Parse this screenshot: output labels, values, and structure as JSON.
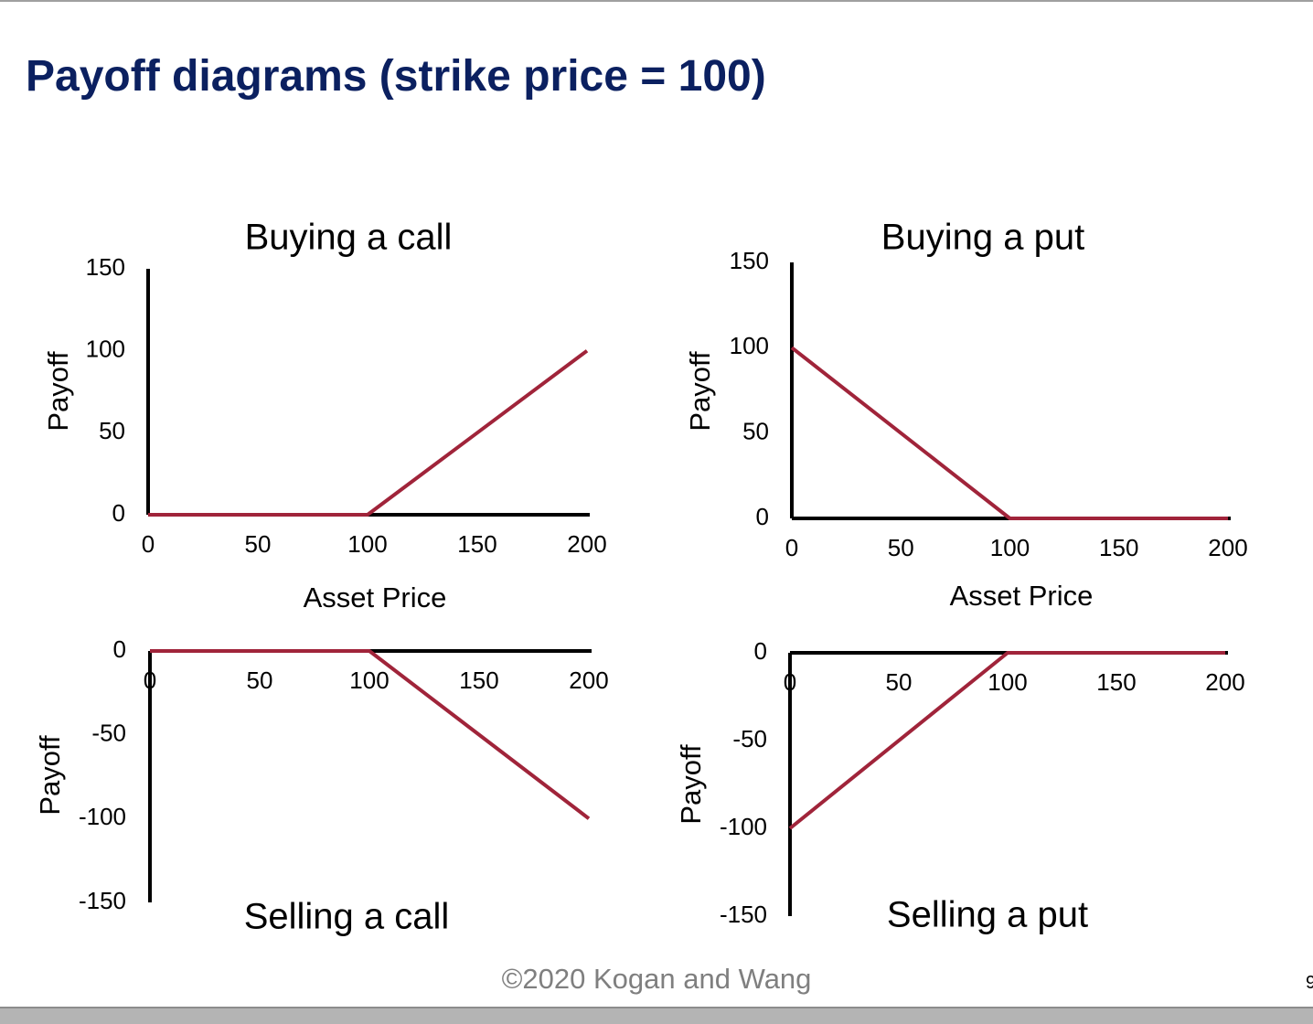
{
  "slide": {
    "title": "Payoff diagrams (strike price = 100)",
    "footer": "©2020 Kogan and Wang",
    "page_number": "9"
  },
  "colors": {
    "title": "#0b2060",
    "line": "#a0243a",
    "axis": "#000000",
    "footer": "#7f7f7f"
  },
  "chart_data": [
    {
      "type": "line",
      "title": "Buying a call",
      "xlabel": "Asset Price",
      "ylabel": "Payoff",
      "x_ticks": [
        0,
        50,
        100,
        150,
        200
      ],
      "y_ticks": [
        0,
        50,
        100,
        150
      ],
      "xlim": [
        0,
        200
      ],
      "ylim": [
        0,
        150
      ],
      "series": [
        {
          "points": [
            [
              0,
              0
            ],
            [
              100,
              0
            ],
            [
              200,
              100
            ]
          ]
        }
      ],
      "grid": false
    },
    {
      "type": "line",
      "title": "Buying a put",
      "xlabel": "Asset Price",
      "ylabel": "Payoff",
      "x_ticks": [
        0,
        50,
        100,
        150,
        200
      ],
      "y_ticks": [
        0,
        50,
        100,
        150
      ],
      "xlim": [
        0,
        200
      ],
      "ylim": [
        0,
        150
      ],
      "series": [
        {
          "points": [
            [
              0,
              100
            ],
            [
              100,
              0
            ],
            [
              200,
              0
            ]
          ]
        }
      ],
      "grid": false
    },
    {
      "type": "line",
      "title": "Selling a call",
      "xlabel": "",
      "ylabel": "Payoff",
      "x_ticks": [
        0,
        50,
        100,
        150,
        200
      ],
      "y_ticks": [
        0,
        -50,
        -100,
        -150
      ],
      "xlim": [
        0,
        200
      ],
      "ylim": [
        -150,
        0
      ],
      "series": [
        {
          "points": [
            [
              0,
              0
            ],
            [
              100,
              0
            ],
            [
              200,
              -100
            ]
          ]
        }
      ],
      "grid": false
    },
    {
      "type": "line",
      "title": "Selling a put",
      "xlabel": "",
      "ylabel": "Payoff",
      "x_ticks": [
        0,
        50,
        100,
        150,
        200
      ],
      "y_ticks": [
        0,
        -50,
        -100,
        -150
      ],
      "xlim": [
        0,
        200
      ],
      "ylim": [
        -150,
        0
      ],
      "series": [
        {
          "points": [
            [
              0,
              -100
            ],
            [
              100,
              0
            ],
            [
              200,
              0
            ]
          ]
        }
      ],
      "grid": false
    }
  ]
}
